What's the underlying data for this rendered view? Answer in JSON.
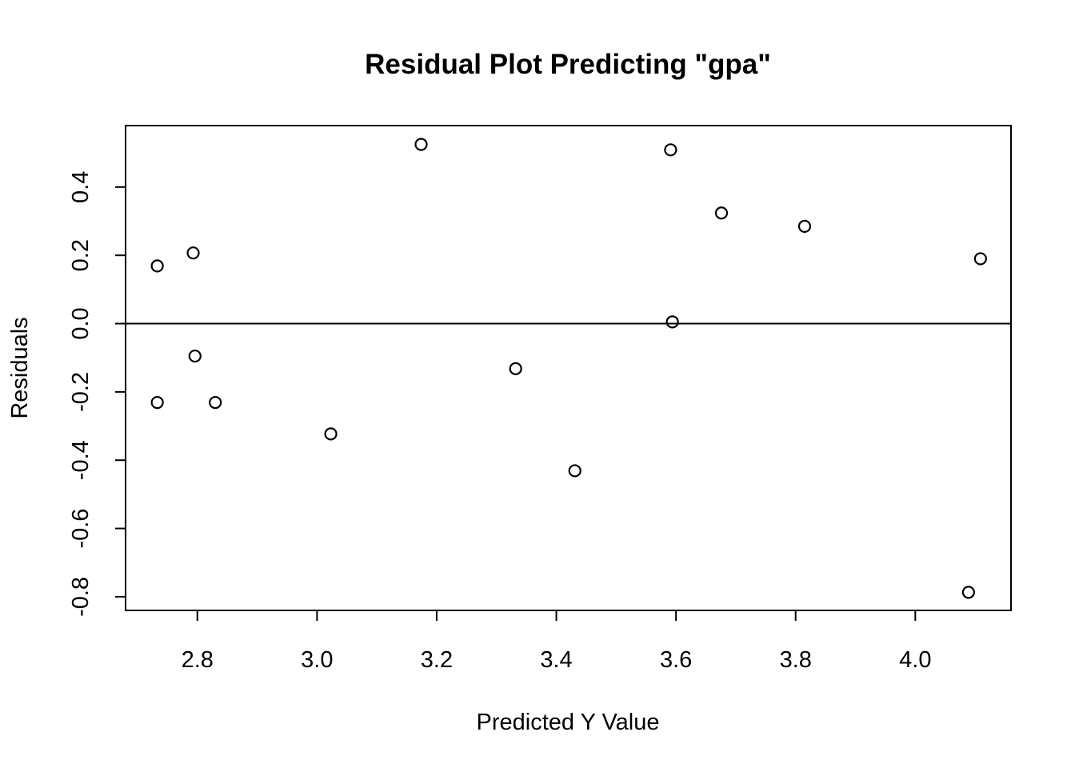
{
  "chart_data": {
    "type": "scatter",
    "title": "Residual Plot Predicting \"gpa\"",
    "xlabel": "Predicted Y Value",
    "ylabel": "Residuals",
    "xlim": [
      2.68,
      4.16
    ],
    "ylim": [
      -0.84,
      0.58
    ],
    "x_ticks": [
      2.8,
      3.0,
      3.2,
      3.4,
      3.6,
      3.8,
      4.0
    ],
    "x_tick_labels": [
      "2.8",
      "3.0",
      "3.2",
      "3.4",
      "3.6",
      "3.8",
      "4.0"
    ],
    "y_ticks": [
      0.4,
      0.2,
      0.0,
      -0.2,
      -0.4,
      -0.6,
      -0.8
    ],
    "y_tick_labels": [
      "0.4",
      "0.2",
      "0.0",
      "-0.2",
      "-0.4",
      "-0.6",
      "-0.8"
    ],
    "reference_line_y": 0.0,
    "grid": false,
    "marker": "open-circle",
    "points": [
      {
        "x": 2.733,
        "y": 0.169
      },
      {
        "x": 2.793,
        "y": 0.207
      },
      {
        "x": 2.733,
        "y": -0.231
      },
      {
        "x": 2.796,
        "y": -0.095
      },
      {
        "x": 2.83,
        "y": -0.231
      },
      {
        "x": 3.023,
        "y": -0.323
      },
      {
        "x": 3.174,
        "y": 0.525
      },
      {
        "x": 3.332,
        "y": -0.132
      },
      {
        "x": 3.431,
        "y": -0.431
      },
      {
        "x": 3.591,
        "y": 0.509
      },
      {
        "x": 3.594,
        "y": 0.005
      },
      {
        "x": 3.676,
        "y": 0.324
      },
      {
        "x": 3.815,
        "y": 0.285
      },
      {
        "x": 4.089,
        "y": -0.787
      },
      {
        "x": 4.109,
        "y": 0.19
      }
    ]
  }
}
